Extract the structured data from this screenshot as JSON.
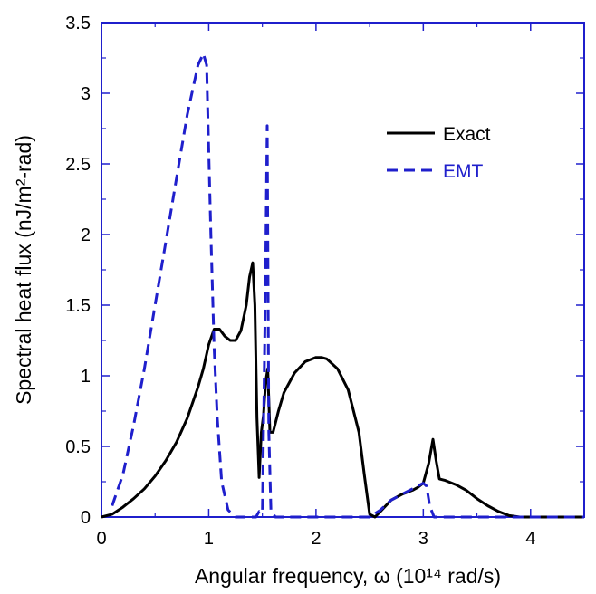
{
  "chart_data": {
    "type": "line",
    "title": "",
    "xlabel": "Angular frequency, ω (10¹⁴ rad/s)",
    "ylabel": "Spectral heat flux (nJ/m²-rad)",
    "xlim": [
      0,
      4.5
    ],
    "ylim": [
      0,
      3.5
    ],
    "x_ticks": [
      0,
      1,
      2,
      3,
      4
    ],
    "y_ticks": [
      0,
      0.5,
      1,
      1.5,
      2,
      2.5,
      3,
      3.5
    ],
    "x_tick_labels": [
      "0",
      "1",
      "2",
      "3",
      "4"
    ],
    "y_tick_labels": [
      "0",
      "0.5",
      "1",
      "1.5",
      "2",
      "2.5",
      "3",
      "3.5"
    ],
    "grid": false,
    "legend_position": "upper-right",
    "series": [
      {
        "name": "Exact",
        "color": "#000000",
        "style": "solid",
        "points": [
          [
            0,
            0
          ],
          [
            0.1,
            0.02
          ],
          [
            0.2,
            0.07
          ],
          [
            0.3,
            0.13
          ],
          [
            0.4,
            0.2
          ],
          [
            0.5,
            0.29
          ],
          [
            0.6,
            0.4
          ],
          [
            0.7,
            0.53
          ],
          [
            0.8,
            0.7
          ],
          [
            0.9,
            0.92
          ],
          [
            0.95,
            1.05
          ],
          [
            1.0,
            1.22
          ],
          [
            1.05,
            1.33
          ],
          [
            1.1,
            1.33
          ],
          [
            1.15,
            1.28
          ],
          [
            1.2,
            1.25
          ],
          [
            1.25,
            1.25
          ],
          [
            1.3,
            1.32
          ],
          [
            1.35,
            1.5
          ],
          [
            1.38,
            1.7
          ],
          [
            1.41,
            1.8
          ],
          [
            1.43,
            1.5
          ],
          [
            1.45,
            0.7
          ],
          [
            1.47,
            0.28
          ],
          [
            1.49,
            0.6
          ],
          [
            1.51,
            0.72
          ],
          [
            1.53,
            0.95
          ],
          [
            1.55,
            1.05
          ],
          [
            1.57,
            0.6
          ],
          [
            1.6,
            0.6
          ],
          [
            1.65,
            0.75
          ],
          [
            1.7,
            0.88
          ],
          [
            1.8,
            1.02
          ],
          [
            1.9,
            1.1
          ],
          [
            2.0,
            1.13
          ],
          [
            2.05,
            1.13
          ],
          [
            2.1,
            1.12
          ],
          [
            2.2,
            1.05
          ],
          [
            2.3,
            0.9
          ],
          [
            2.4,
            0.6
          ],
          [
            2.45,
            0.3
          ],
          [
            2.5,
            0.02
          ],
          [
            2.55,
            0
          ],
          [
            2.6,
            0.04
          ],
          [
            2.7,
            0.12
          ],
          [
            2.8,
            0.16
          ],
          [
            2.9,
            0.19
          ],
          [
            2.95,
            0.21
          ],
          [
            3.0,
            0.24
          ],
          [
            3.05,
            0.38
          ],
          [
            3.09,
            0.55
          ],
          [
            3.12,
            0.4
          ],
          [
            3.15,
            0.27
          ],
          [
            3.2,
            0.26
          ],
          [
            3.3,
            0.23
          ],
          [
            3.4,
            0.19
          ],
          [
            3.5,
            0.13
          ],
          [
            3.6,
            0.08
          ],
          [
            3.7,
            0.04
          ],
          [
            3.8,
            0.01
          ],
          [
            3.9,
            0
          ],
          [
            4.5,
            0
          ]
        ]
      },
      {
        "name": "EMT",
        "color": "#1f1fcc",
        "style": "dashed",
        "points": [
          [
            0.1,
            0.08
          ],
          [
            0.2,
            0.3
          ],
          [
            0.3,
            0.65
          ],
          [
            0.4,
            1.05
          ],
          [
            0.5,
            1.5
          ],
          [
            0.6,
            1.95
          ],
          [
            0.7,
            2.4
          ],
          [
            0.8,
            2.85
          ],
          [
            0.9,
            3.2
          ],
          [
            0.95,
            3.28
          ],
          [
            0.98,
            3.2
          ],
          [
            1.0,
            2.6
          ],
          [
            1.02,
            2.0
          ],
          [
            1.05,
            1.2
          ],
          [
            1.08,
            0.7
          ],
          [
            1.12,
            0.25
          ],
          [
            1.18,
            0.05
          ],
          [
            1.25,
            0
          ],
          [
            1.44,
            0
          ],
          [
            1.47,
            0.04
          ],
          [
            1.5,
            0.03
          ],
          [
            1.53,
            1.7
          ],
          [
            1.545,
            2.77
          ],
          [
            1.56,
            0.6
          ],
          [
            1.58,
            0.05
          ],
          [
            1.62,
            0
          ],
          [
            2.5,
            0
          ],
          [
            2.6,
            0.05
          ],
          [
            2.7,
            0.12
          ],
          [
            2.8,
            0.16
          ],
          [
            2.9,
            0.2
          ],
          [
            2.95,
            0.22
          ],
          [
            3.0,
            0.24
          ],
          [
            3.03,
            0.22
          ],
          [
            3.06,
            0.08
          ],
          [
            3.1,
            0
          ],
          [
            4.5,
            0
          ]
        ]
      }
    ]
  }
}
